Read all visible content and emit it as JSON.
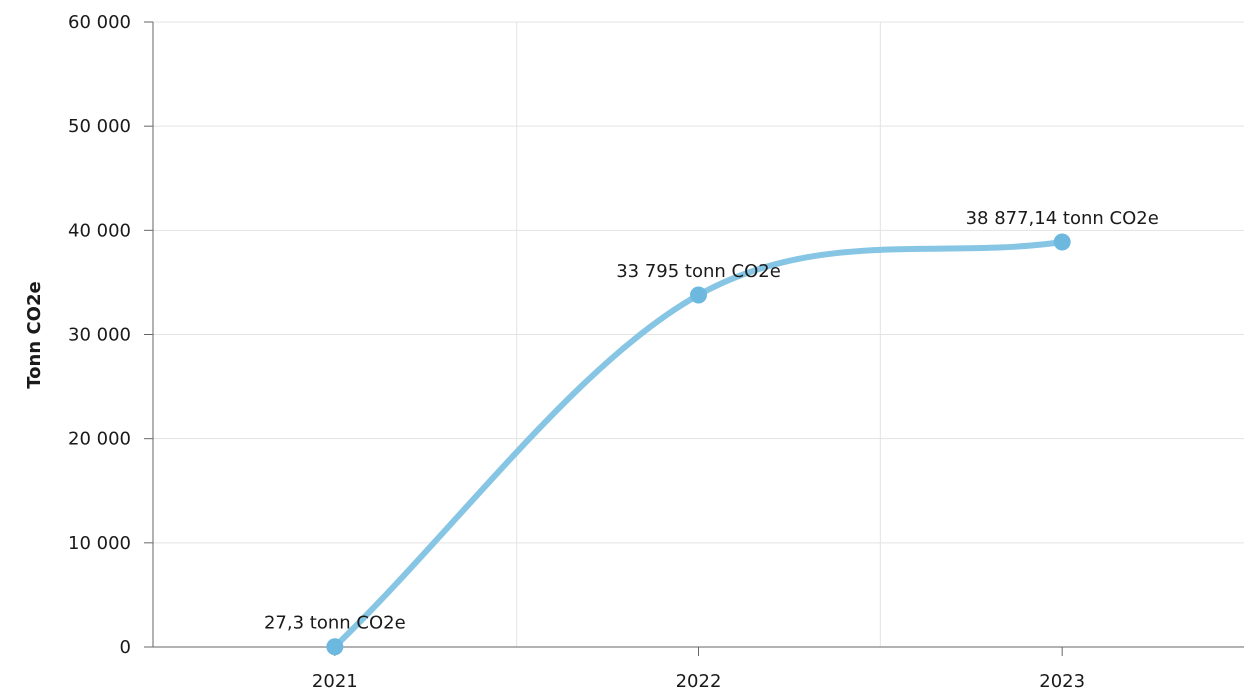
{
  "chart_data": {
    "type": "line",
    "title": "",
    "xlabel": "",
    "ylabel": "Tonn CO2e",
    "categories": [
      "2021",
      "2022",
      "2023"
    ],
    "series": [
      {
        "values": [
          27.3,
          33795,
          38877.14
        ],
        "data_labels": [
          "27,3 tonn CO2e",
          "33 795 tonn CO2e",
          "38 877,14 tonn CO2e"
        ],
        "color": "#86c5e3",
        "marker_color": "#6cb8df"
      }
    ],
    "ylim": [
      0,
      60000
    ],
    "y_ticks": [
      0,
      10000,
      20000,
      30000,
      40000,
      50000,
      60000
    ],
    "y_tick_labels": [
      "0",
      "10 000",
      "20 000",
      "30 000",
      "40 000",
      "50 000",
      "60 000"
    ],
    "grid": true,
    "legend": "none",
    "smooth": true
  }
}
